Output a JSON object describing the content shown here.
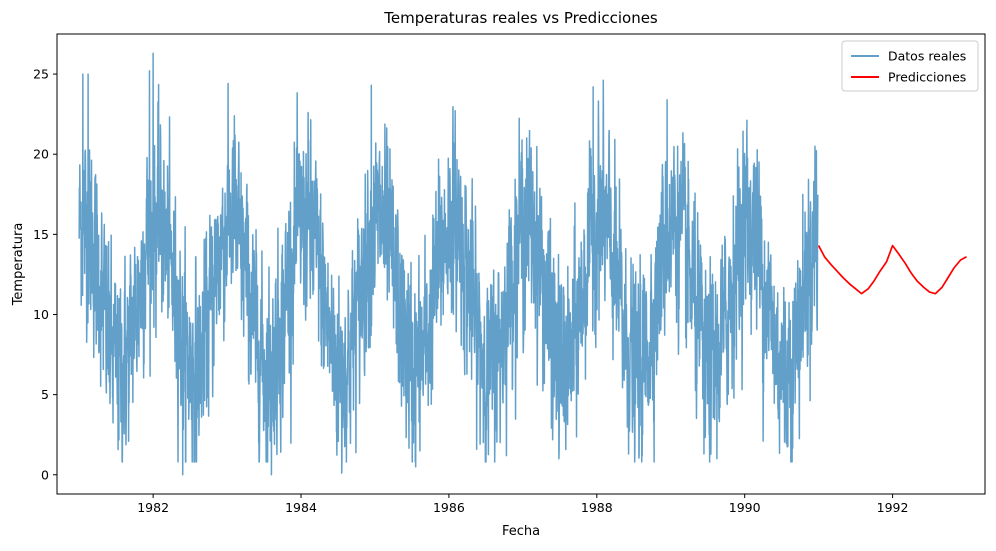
{
  "chart_data": {
    "type": "line",
    "title": "Temperaturas reales vs Predicciones",
    "xlabel": "Fecha",
    "ylabel": "Temperatura",
    "xlim": [
      1980.7,
      1993.25
    ],
    "ylim": [
      -1.2,
      27.5
    ],
    "x_ticks": [
      1982,
      1984,
      1986,
      1988,
      1990,
      1992
    ],
    "y_ticks": [
      0,
      5,
      10,
      15,
      20,
      25
    ],
    "grid": false,
    "legend": {
      "position": "top-right"
    },
    "series": [
      {
        "name": "Datos reales",
        "color": "#1f77b4",
        "opacity": 0.7,
        "x_range": [
          1981.0,
          1990.99
        ],
        "samples_per_year": 365,
        "seasonal_mean": 11.2,
        "seasonal_amplitude": 4.6,
        "peak_fraction_of_year": 0.05,
        "noise_sd": 2.9,
        "observed_min": 0.0,
        "observed_max": 26.3,
        "notable_points": [
          {
            "x": 1981.05,
            "y": 25.0
          },
          {
            "x": 1981.12,
            "y": 25.0
          },
          {
            "x": 1982.0,
            "y": 26.3
          },
          {
            "x": 1981.95,
            "y": 25.2
          },
          {
            "x": 1982.4,
            "y": 0.0
          },
          {
            "x": 1983.6,
            "y": 0.0
          },
          {
            "x": 1983.1,
            "y": 22.4
          },
          {
            "x": 1984.55,
            "y": 0.1
          },
          {
            "x": 1984.95,
            "y": 24.3
          },
          {
            "x": 1985.55,
            "y": 0.5
          },
          {
            "x": 1987.95,
            "y": 24.2
          },
          {
            "x": 1988.95,
            "y": 23.4
          },
          {
            "x": 1989.45,
            "y": 1.3
          },
          {
            "x": 1990.25,
            "y": 2.1
          },
          {
            "x": 1990.95,
            "y": 20.5
          }
        ]
      },
      {
        "name": "Predicciones",
        "color": "#ff0000",
        "x": [
          1991.0,
          1991.08,
          1991.17,
          1991.25,
          1991.33,
          1991.42,
          1991.5,
          1991.58,
          1991.67,
          1991.75,
          1991.83,
          1991.92,
          1992.0,
          1992.08,
          1992.17,
          1992.25,
          1992.33,
          1992.42,
          1992.5,
          1992.58,
          1992.67,
          1992.75,
          1992.83,
          1992.92,
          1993.0
        ],
        "y": [
          14.3,
          13.6,
          13.1,
          12.7,
          12.3,
          11.9,
          11.6,
          11.3,
          11.6,
          12.1,
          12.7,
          13.3,
          14.3,
          13.8,
          13.2,
          12.6,
          12.1,
          11.7,
          11.4,
          11.3,
          11.7,
          12.3,
          12.9,
          13.4,
          13.6
        ]
      }
    ]
  }
}
